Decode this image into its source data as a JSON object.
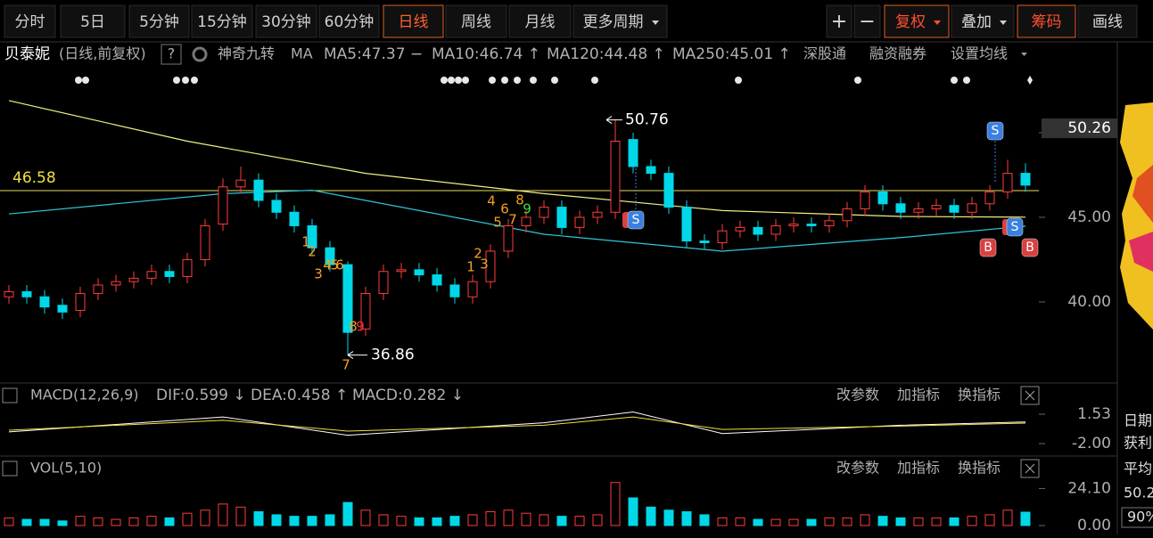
{
  "toolbar": {
    "periods": [
      "分时",
      "5日",
      "5分钟",
      "15分钟",
      "30分钟",
      "60分钟",
      "日线",
      "周线",
      "月线",
      "更多周期"
    ],
    "tools": [
      "+",
      "−",
      "复权",
      "叠加",
      "筹码",
      "画线"
    ]
  },
  "info_bar": {
    "name": "贝泰妮",
    "mode": "(日线,前复权)",
    "help": "?",
    "indicator": "神奇九转",
    "ma": "MA",
    "ma_values": [
      {
        "label": "MA5:47.37 −",
        "color": "#ffffff"
      },
      {
        "label": "MA10:46.74 ↑",
        "color": "#f0e040"
      },
      {
        "label": "MA120:44.48 ↑",
        "color": "#30d0e0"
      },
      {
        "label": "MA250:45.01 ↑",
        "color": "#f0e040"
      }
    ],
    "links": [
      "深股通",
      "融资融券",
      "设置均线"
    ]
  },
  "price_chart": {
    "ylim": [
      35.47,
      52.58
    ],
    "yticks": [
      {
        "value": 50,
        "label": "50.00"
      },
      {
        "value": 45,
        "label": "45.00"
      },
      {
        "value": 40,
        "label": "40.00"
      }
    ],
    "cursor_label": 50.26,
    "cursor_price": 46.58,
    "high_label": 50.76,
    "low_label": 36.86,
    "up_color": "#ff3c3c",
    "down_color": "#00d8e8",
    "candles": {
      "open": [
        40.3,
        40.6,
        40.3,
        39.8,
        39.5,
        40.5,
        41.0,
        41.2,
        41.4,
        41.8,
        41.5,
        42.5,
        44.6,
        46.8,
        47.2,
        46.0,
        45.3,
        44.5,
        43.2,
        42.2,
        38.4,
        40.5,
        41.8,
        41.9,
        41.6,
        41.0,
        40.3,
        41.2,
        43.0,
        44.5,
        45.0,
        45.6,
        44.4,
        45.0,
        45.3,
        49.6,
        48.0,
        47.6,
        45.6,
        43.6,
        43.5,
        44.2,
        44.4,
        44.0,
        44.5,
        44.6,
        44.5,
        44.8,
        45.5,
        46.5,
        45.8,
        45.3,
        45.5,
        45.7,
        45.3,
        45.8,
        46.5,
        47.6
      ],
      "high": [
        41.0,
        41.0,
        40.7,
        40.2,
        40.9,
        41.4,
        41.6,
        41.8,
        42.2,
        42.2,
        42.9,
        44.9,
        47.3,
        48.0,
        47.6,
        46.4,
        45.7,
        44.9,
        43.6,
        42.4,
        40.9,
        42.2,
        42.3,
        42.3,
        42.0,
        41.4,
        41.6,
        43.4,
        44.9,
        45.4,
        46.0,
        46.0,
        45.4,
        45.7,
        50.76,
        50.0,
        48.4,
        48.0,
        46.0,
        44.0,
        44.6,
        44.8,
        44.8,
        44.9,
        45.0,
        45.0,
        45.2,
        45.9,
        46.9,
        46.9,
        46.2,
        45.9,
        46.1,
        46.1,
        46.2,
        46.9,
        48.4,
        48.2
      ],
      "low": [
        39.9,
        39.9,
        39.3,
        39.0,
        39.1,
        40.1,
        40.6,
        40.8,
        41.0,
        41.1,
        41.1,
        42.1,
        44.2,
        46.4,
        45.6,
        44.9,
        44.1,
        42.8,
        41.8,
        36.86,
        38.0,
        40.1,
        41.4,
        41.2,
        40.6,
        39.9,
        39.9,
        40.8,
        42.6,
        44.1,
        44.6,
        44.0,
        44.0,
        44.6,
        44.9,
        47.6,
        47.2,
        45.2,
        43.2,
        43.1,
        43.1,
        43.8,
        43.6,
        43.6,
        44.1,
        44.1,
        44.1,
        44.4,
        45.1,
        45.4,
        44.9,
        44.9,
        45.1,
        44.9,
        44.9,
        45.4,
        46.1,
        46.5
      ],
      "close": [
        40.6,
        40.3,
        39.7,
        39.4,
        40.5,
        41.0,
        41.2,
        41.4,
        41.8,
        41.5,
        42.5,
        44.5,
        46.8,
        47.2,
        46.0,
        45.3,
        44.5,
        43.2,
        42.2,
        38.2,
        40.5,
        41.8,
        41.9,
        41.6,
        41.0,
        40.3,
        41.2,
        43.0,
        44.5,
        45.0,
        45.6,
        44.4,
        45.0,
        45.3,
        49.5,
        48.0,
        47.6,
        45.6,
        43.6,
        43.5,
        44.2,
        44.4,
        44.0,
        44.5,
        44.6,
        44.5,
        44.8,
        45.5,
        46.5,
        45.8,
        45.3,
        45.5,
        45.7,
        45.3,
        45.8,
        46.5,
        47.6,
        46.9
      ]
    },
    "ma_lines": [
      {
        "color": "#f0f080",
        "x": [
          0,
          10,
          20,
          30,
          40,
          50,
          57
        ],
        "values": [
          51.9,
          49.5,
          47.6,
          46.4,
          45.4,
          45.05,
          45.01
        ]
      },
      {
        "color": "#30c8d8",
        "x": [
          0,
          12,
          17,
          30,
          40,
          50,
          57
        ],
        "values": [
          45.2,
          46.4,
          46.6,
          44.0,
          43.0,
          43.8,
          44.48
        ]
      }
    ],
    "td_labels": [
      "1",
      "2",
      "3",
      "4",
      "5",
      "6",
      "8",
      "9",
      "7",
      "1",
      "2",
      "3",
      "4",
      "5",
      "6",
      "7",
      "8",
      "9"
    ],
    "signals": [
      "S",
      "S",
      "S",
      "B",
      "B"
    ]
  },
  "macd_panel": {
    "header": "MACD(12,26,9)",
    "values": [
      {
        "label": "DIF:0.599 ↓",
        "color": "#ffffff"
      },
      {
        "label": "DEA:0.458 ↑",
        "color": "#f0e040"
      },
      {
        "label": "MACD:0.282 ↓",
        "color": "#ff40ff"
      }
    ],
    "buttons": [
      "改参数",
      "加指标",
      "换指标"
    ],
    "ylim": [
      -3.07,
      2.6
    ],
    "yticks": [
      1.53,
      {
        "value": -2,
        "label": "-2.00"
      }
    ],
    "dif": {
      "x": [
        0,
        12,
        19,
        30,
        35,
        40,
        50,
        57
      ],
      "values": [
        -0.6,
        1.2,
        -1.0,
        0.5,
        1.8,
        -0.8,
        0.2,
        0.599
      ]
    },
    "dea": {
      "x": [
        0,
        12,
        19,
        30,
        35,
        40,
        50,
        57
      ],
      "values": [
        -0.4,
        0.8,
        -0.5,
        0.2,
        1.2,
        -0.3,
        0.1,
        0.458
      ]
    }
  },
  "volume_panel": {
    "header": "VOL(5,10)",
    "values": [
      5,
      4,
      4,
      3,
      6,
      5,
      4,
      5,
      6,
      5,
      8,
      10,
      14,
      12,
      9,
      7,
      6,
      6,
      7,
      15,
      10,
      7,
      6,
      5,
      5,
      6,
      7,
      9,
      10,
      8,
      7,
      6,
      6,
      7,
      28,
      18,
      12,
      10,
      9,
      7,
      5,
      5,
      4,
      4,
      4,
      4,
      5,
      5,
      7,
      6,
      5,
      5,
      5,
      5,
      6,
      7,
      10,
      8.7
    ],
    "buttons": [
      "改参数",
      "加指标",
      "换指标"
    ],
    "ylim": [
      0,
      29
    ],
    "yticks": [
      {
        "value": 24.1,
        "label": "24.10"
      },
      {
        "value": 0,
        "label": "0.00"
      }
    ]
  },
  "side_panel": {
    "texts": [
      "日期",
      "获利",
      "平均",
      "50.2",
      "90%"
    ]
  }
}
